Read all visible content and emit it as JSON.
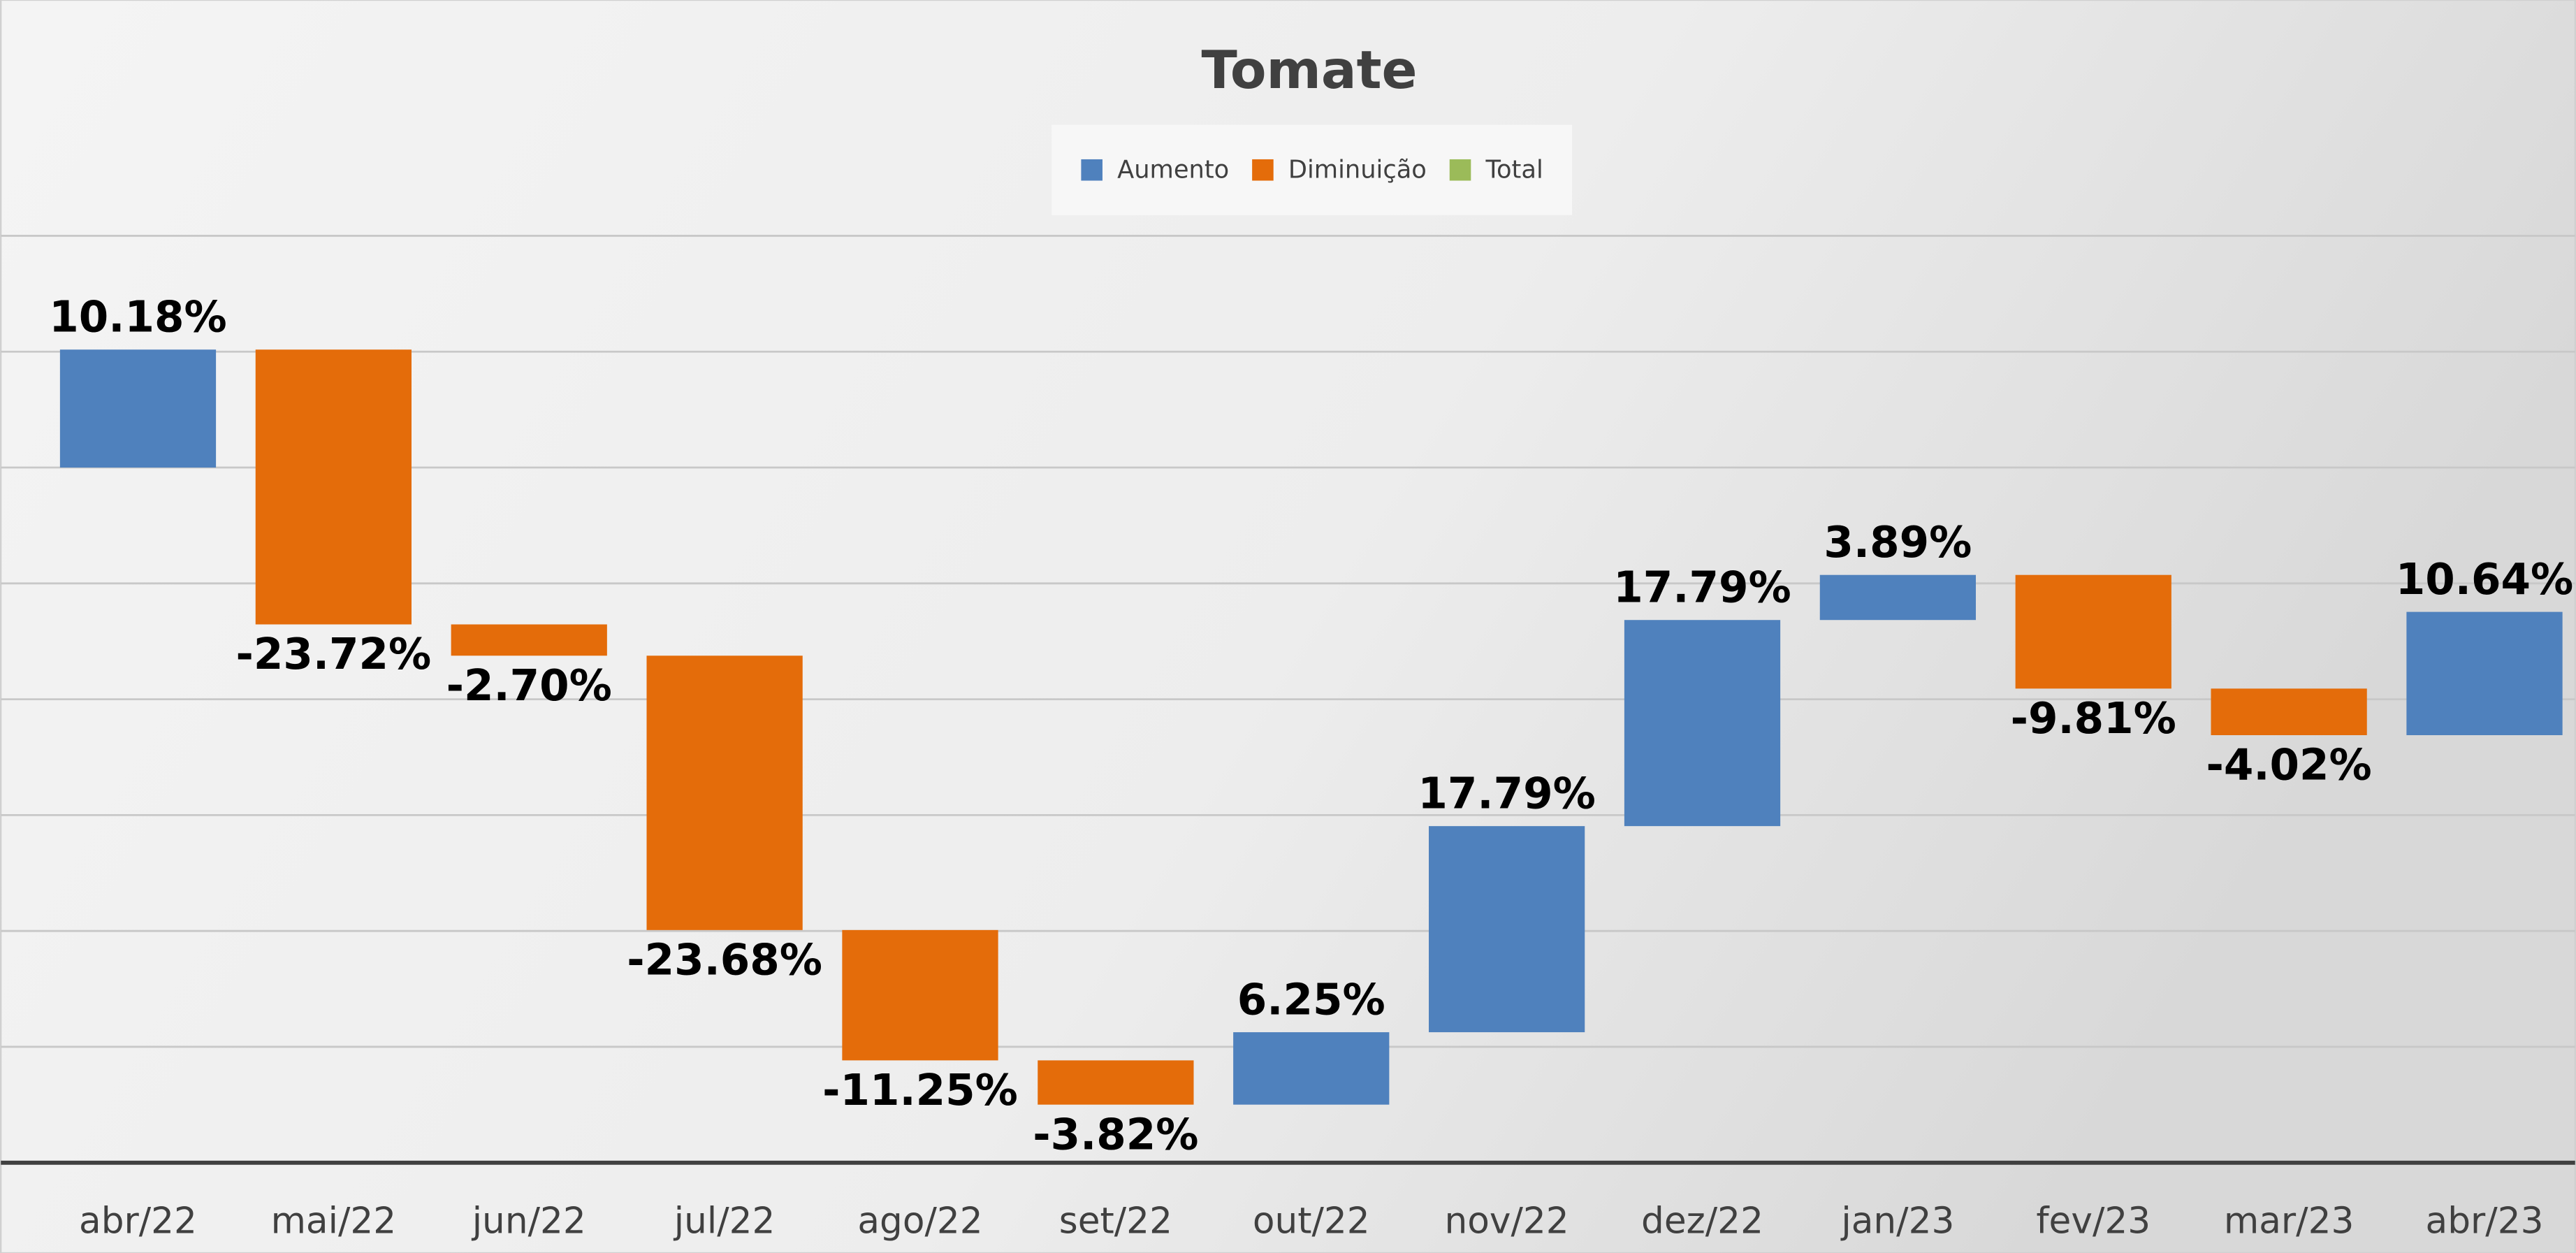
{
  "chart_data": {
    "type": "waterfall",
    "title": "Tomate",
    "legend_entries": [
      {
        "name": "Aumento",
        "color": "#4f81bd"
      },
      {
        "name": "Diminuição",
        "color": "#e46c0a"
      },
      {
        "name": "Total",
        "color": "#9bbb59"
      }
    ],
    "categories": [
      "abr/22",
      "mai/22",
      "jun/22",
      "jul/22",
      "ago/22",
      "set/22",
      "out/22",
      "nov/22",
      "dez/22",
      "jan/23",
      "fev/23",
      "mar/23",
      "abr/23"
    ],
    "values": [
      10.18,
      -23.72,
      -2.7,
      -23.68,
      -11.25,
      -3.82,
      6.25,
      17.79,
      17.79,
      3.89,
      -9.81,
      -4.02,
      10.64
    ],
    "value_labels": [
      "10.18%",
      "-23.72%",
      "-2.70%",
      "-23.68%",
      "-11.25%",
      "-3.82%",
      "6.25%",
      "17.79%",
      "17.79%",
      "3.89%",
      "-9.81%",
      "-4.02%",
      "10.64%"
    ],
    "ylim": [
      -60,
      20
    ],
    "yticks": [
      -60,
      -50,
      -40,
      -30,
      -20,
      -10,
      0,
      10,
      20
    ],
    "grid": true
  }
}
